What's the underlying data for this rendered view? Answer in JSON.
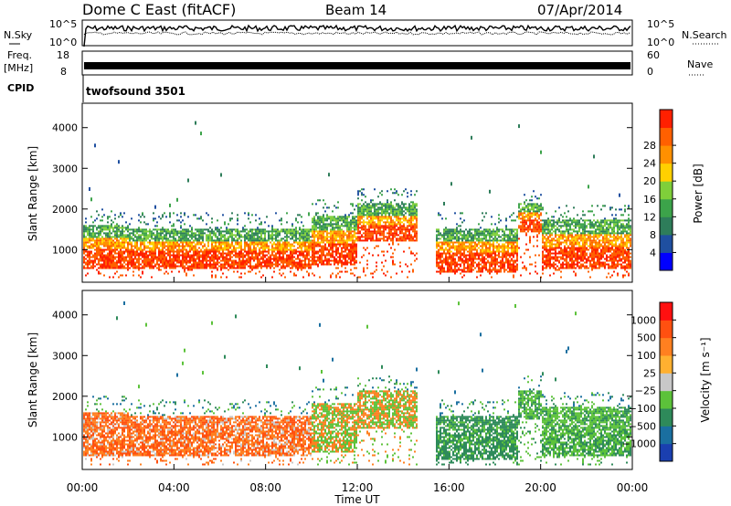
{
  "header": {
    "station": "Dome C East (fitACF)",
    "beam": "Beam 14",
    "date": "07/Apr/2014"
  },
  "aux_panels": {
    "nsky_label": "N.Sky",
    "nsearch_label": "N.Search",
    "nsky_ticks": [
      "10^5",
      "10^0"
    ],
    "freq_label": "Freq.",
    "freq_unit": "[MHz]",
    "freq_ticks": [
      "18",
      "8"
    ],
    "nave_label": "Nave",
    "nave_ticks": [
      "60",
      "0"
    ],
    "cpid_label": "CPID",
    "cpid_value": "twofsound 3501"
  },
  "chart_data": [
    {
      "type": "heatmap",
      "name_text": "power",
      "ylabel": "Slant Range [km]",
      "ylim": [
        200,
        4600
      ],
      "yticks": [
        "1000",
        "2000",
        "3000",
        "4000"
      ],
      "xlim": [
        0,
        24
      ],
      "colorbar_label": "Power [dB]",
      "colorbar_ticks": [
        "4",
        "8",
        "12",
        "16",
        "20",
        "24",
        "28"
      ],
      "colorbar_colors": [
        "#0000ff",
        "#1f4fa0",
        "#2e7d5a",
        "#3ca34a",
        "#7fcf3a",
        "#ffd000",
        "#ff9000",
        "#ff6000",
        "#ff2000"
      ]
    },
    {
      "type": "heatmap",
      "name_text": "velocity",
      "ylabel": "Slant Range [km]",
      "ylim": [
        200,
        4600
      ],
      "yticks": [
        "1000",
        "2000",
        "3000",
        "4000"
      ],
      "xlim": [
        0,
        24
      ],
      "colorbar_label": "Velocity [m s⁻¹]",
      "colorbar_ticks": [
        "1000",
        "500",
        "100",
        "25",
        "−25",
        "−100",
        "−500",
        "−1000"
      ],
      "colorbar_colors": [
        "#1a3fb0",
        "#1a6fa0",
        "#2e8a5a",
        "#5cc23a",
        "#c8c8c8",
        "#ffb030",
        "#ff8020",
        "#ff5010",
        "#ff1010"
      ]
    }
  ],
  "x_axis": {
    "ticks": [
      "00:00",
      "04:00",
      "08:00",
      "12:00",
      "16:00",
      "20:00",
      "00:00"
    ],
    "label": "Time UT"
  }
}
